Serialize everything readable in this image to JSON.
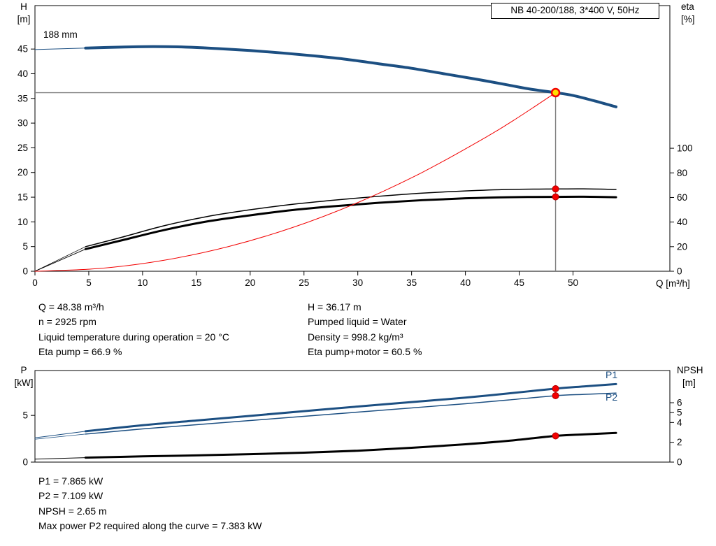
{
  "header": {
    "model_box": "NB 40-200/188, 3*400 V, 50Hz"
  },
  "colors": {
    "pump_blue": "#1c4f82",
    "eta_black": "#000000",
    "system_red": "#f20000",
    "duty_yellow": "#ffdf00",
    "marker_red": "#f20000",
    "crosshair_gray": "#808080"
  },
  "chart_data": [
    {
      "id": "qh",
      "type": "line",
      "title": "Pump performance curve Q-H with efficiency",
      "impeller_label": "188 mm",
      "x_axis": {
        "label": "Q [m³/h]",
        "range": [
          0,
          59
        ],
        "ticks": [
          0,
          5,
          10,
          15,
          20,
          25,
          30,
          35,
          40,
          45,
          50
        ],
        "show_tick_labels": true
      },
      "y_left": {
        "label": [
          "H",
          "[m]"
        ],
        "range": [
          0,
          53.8
        ],
        "ticks": [
          0,
          5,
          10,
          15,
          20,
          25,
          30,
          35,
          40,
          45
        ]
      },
      "y_right": {
        "label": [
          "eta",
          "[%]"
        ],
        "range": [
          0,
          216
        ],
        "ticks": [
          0,
          20,
          40,
          60,
          80,
          100
        ]
      },
      "crosshair": {
        "q": 48.38,
        "v": 36.17
      },
      "series": [
        {
          "name": "pump-curve-lead",
          "axis": "left",
          "color": "pump_blue",
          "width": 1,
          "points": [
            [
              0,
              44.9
            ],
            [
              4.7,
              45.2
            ]
          ]
        },
        {
          "name": "pump-curve",
          "axis": "left",
          "color": "pump_blue",
          "width": 4,
          "points": [
            [
              4.7,
              45.2
            ],
            [
              8,
              45.4
            ],
            [
              11,
              45.5
            ],
            [
              14,
              45.4
            ],
            [
              17,
              45.1
            ],
            [
              20,
              44.7
            ],
            [
              23,
              44.2
            ],
            [
              26,
              43.6
            ],
            [
              29,
              42.9
            ],
            [
              32,
              42.0
            ],
            [
              35,
              41.1
            ],
            [
              38,
              40.0
            ],
            [
              41,
              38.9
            ],
            [
              44,
              37.7
            ],
            [
              46,
              36.9
            ],
            [
              48.38,
              36.17
            ],
            [
              50,
              35.6
            ],
            [
              52,
              34.5
            ],
            [
              54,
              33.3
            ]
          ]
        },
        {
          "name": "eta-pump-lead",
          "axis": "right",
          "color": "eta_black",
          "width": 0.8,
          "points": [
            [
              0,
              0
            ],
            [
              4.7,
              20
            ]
          ]
        },
        {
          "name": "eta-pump-curve",
          "axis": "right",
          "color": "eta_black",
          "width": 1.5,
          "points": [
            [
              4.7,
              20
            ],
            [
              8,
              27.5
            ],
            [
              12,
              37
            ],
            [
              16,
              44.5
            ],
            [
              20,
              50
            ],
            [
              24,
              54.5
            ],
            [
              28,
              58
            ],
            [
              32,
              61
            ],
            [
              36,
              63.5
            ],
            [
              40,
              65.3
            ],
            [
              44,
              66.5
            ],
            [
              48.38,
              66.9
            ],
            [
              51,
              67
            ],
            [
              54,
              66.5
            ]
          ]
        },
        {
          "name": "eta-pump-motor-lead",
          "axis": "right",
          "color": "eta_black",
          "width": 0.9,
          "points": [
            [
              0,
              0
            ],
            [
              4.7,
              18
            ]
          ]
        },
        {
          "name": "eta-pump-motor-curve",
          "axis": "right",
          "color": "eta_black",
          "width": 3,
          "points": [
            [
              4.7,
              18
            ],
            [
              8,
              25
            ],
            [
              12,
              33.5
            ],
            [
              16,
              40.5
            ],
            [
              20,
              45.5
            ],
            [
              24,
              49.8
            ],
            [
              28,
              53
            ],
            [
              32,
              55.7
            ],
            [
              36,
              57.8
            ],
            [
              40,
              59.3
            ],
            [
              44,
              60.2
            ],
            [
              48.38,
              60.5
            ],
            [
              51,
              60.6
            ],
            [
              54,
              60.2
            ]
          ]
        },
        {
          "name": "system-curve",
          "axis": "left",
          "color": "system_red",
          "width": 1,
          "points": [
            [
              0,
              0
            ],
            [
              6,
              0.56
            ],
            [
              12,
              2.23
            ],
            [
              18,
              5.01
            ],
            [
              24,
              8.9
            ],
            [
              30,
              13.91
            ],
            [
              36,
              20.03
            ],
            [
              42,
              27.26
            ],
            [
              45,
              31.29
            ],
            [
              48.38,
              36.17
            ]
          ]
        }
      ],
      "markers": [
        {
          "name": "duty-point",
          "q": 48.38,
          "v": 36.17,
          "axis": "left",
          "style": "duty"
        },
        {
          "name": "eta-pump-duty-dot",
          "q": 48.38,
          "v": 66.9,
          "axis": "right",
          "style": "dot"
        },
        {
          "name": "eta-pump-motor-duty-dot",
          "q": 48.38,
          "v": 60.5,
          "axis": "right",
          "style": "dot"
        }
      ]
    },
    {
      "id": "power-npsh",
      "type": "line",
      "title": "Power P1/P2 and NPSH curves",
      "labels": [
        "P1",
        "P2"
      ],
      "x_axis": {
        "label": "",
        "range": [
          0,
          59
        ],
        "ticks": [],
        "show_tick_labels": false
      },
      "y_left": {
        "label": [
          "P",
          "[kW]"
        ],
        "range": [
          0,
          9.8
        ],
        "ticks": [
          0,
          5
        ]
      },
      "y_right": {
        "label": [
          "NPSH",
          "[m]"
        ],
        "range": [
          0,
          9.25
        ],
        "ticks": [
          0,
          2,
          4,
          5,
          6
        ]
      },
      "series": [
        {
          "name": "p1-lead",
          "axis": "left",
          "color": "pump_blue",
          "width": 1,
          "points": [
            [
              0,
              2.6
            ],
            [
              4.7,
              3.3
            ]
          ]
        },
        {
          "name": "p1-curve",
          "axis": "left",
          "color": "pump_blue",
          "width": 3,
          "points": [
            [
              4.7,
              3.3
            ],
            [
              10,
              3.95
            ],
            [
              15,
              4.45
            ],
            [
              20,
              4.95
            ],
            [
              25,
              5.45
            ],
            [
              30,
              5.95
            ],
            [
              35,
              6.42
            ],
            [
              40,
              6.9
            ],
            [
              44,
              7.35
            ],
            [
              48.38,
              7.865
            ],
            [
              51,
              8.1
            ],
            [
              54,
              8.35
            ]
          ]
        },
        {
          "name": "p2-lead",
          "axis": "left",
          "color": "pump_blue",
          "width": 0.8,
          "points": [
            [
              0,
              2.45
            ],
            [
              4.7,
              3.0
            ]
          ]
        },
        {
          "name": "p2-curve",
          "axis": "left",
          "color": "pump_blue",
          "width": 1.5,
          "points": [
            [
              4.7,
              3.0
            ],
            [
              10,
              3.55
            ],
            [
              15,
              4.0
            ],
            [
              20,
              4.45
            ],
            [
              25,
              4.9
            ],
            [
              30,
              5.35
            ],
            [
              35,
              5.8
            ],
            [
              40,
              6.25
            ],
            [
              44,
              6.65
            ],
            [
              48.38,
              7.109
            ],
            [
              51,
              7.25
            ],
            [
              54,
              7.383
            ]
          ]
        },
        {
          "name": "npsh-lead",
          "axis": "right",
          "color": "eta_black",
          "width": 1,
          "points": [
            [
              0,
              0.3
            ],
            [
              4.7,
              0.45
            ]
          ]
        },
        {
          "name": "npsh-curve",
          "axis": "right",
          "color": "eta_black",
          "width": 3,
          "points": [
            [
              4.7,
              0.45
            ],
            [
              10,
              0.58
            ],
            [
              15,
              0.68
            ],
            [
              20,
              0.8
            ],
            [
              25,
              0.95
            ],
            [
              30,
              1.15
            ],
            [
              35,
              1.45
            ],
            [
              40,
              1.8
            ],
            [
              44,
              2.15
            ],
            [
              48.38,
              2.65
            ],
            [
              51,
              2.8
            ],
            [
              54,
              2.95
            ]
          ]
        }
      ],
      "markers": [
        {
          "name": "p1-duty-dot",
          "q": 48.38,
          "v": 7.865,
          "axis": "left",
          "style": "dot"
        },
        {
          "name": "p2-duty-dot",
          "q": 48.38,
          "v": 7.109,
          "axis": "left",
          "style": "dot"
        },
        {
          "name": "npsh-duty-dot",
          "q": 48.38,
          "v": 2.65,
          "axis": "right",
          "style": "dot"
        }
      ]
    }
  ],
  "duty_info": {
    "col1": [
      "Q = 48.38 m³/h",
      "n = 2925 rpm",
      "Liquid temperature during operation = 20 °C",
      "Eta pump = 66.9 %"
    ],
    "col2": [
      "H = 36.17 m",
      "Pumped liquid = Water",
      "Density = 998.2 kg/m³",
      "Eta pump+motor = 60.5 %"
    ]
  },
  "power_info": [
    "P1 = 7.865 kW",
    "P2 = 7.109 kW",
    "NPSH = 2.65 m",
    "Max power P2 required along the curve = 7.383 kW"
  ]
}
